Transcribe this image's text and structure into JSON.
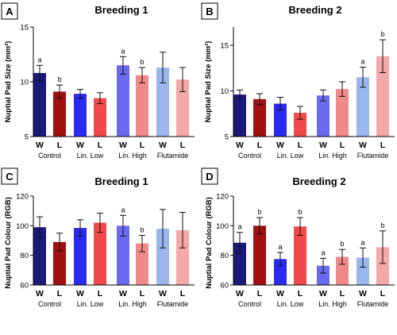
{
  "figure": {
    "panels": [
      {
        "letter": "A",
        "title": "Breeding 1"
      },
      {
        "letter": "B",
        "title": "Breeding 2"
      },
      {
        "letter": "C",
        "title": "Breeding 1"
      },
      {
        "letter": "D",
        "title": "Breeding 2"
      }
    ]
  },
  "colors": {
    "control_W": "#1a1a7a",
    "control_L": "#a01010",
    "linlow_W": "#2a2af0",
    "linlow_L": "#f04a4a",
    "linhigh_W": "#6a6af0",
    "linhigh_L": "#f08a8a",
    "flutamide_W": "#9ab6ee",
    "flutamide_L": "#f4a8a8"
  },
  "chart_data": [
    {
      "type": "bar",
      "title": "Breeding 1",
      "panel": "A",
      "ylabel": "Nuptial Pad Size (mm²)",
      "ylim": [
        5,
        15
      ],
      "yticks": [
        "5",
        "10",
        "15"
      ],
      "categories": [
        "Control W",
        "Control L",
        "Lin. Low W",
        "Lin. Low L",
        "Lin. High W",
        "Lin. High L",
        "Flutamide W",
        "Flutamide L"
      ],
      "tick_labels": [
        "W",
        "L",
        "W",
        "L",
        "W",
        "L",
        "W",
        "L"
      ],
      "groups": [
        "Control",
        "Lin. Low",
        "Lin. High",
        "Flutamide"
      ],
      "values": [
        10.8,
        9.1,
        8.9,
        8.5,
        11.5,
        10.6,
        11.3,
        10.2
      ],
      "errors": [
        0.7,
        0.6,
        0.4,
        0.5,
        0.8,
        0.7,
        1.4,
        1.1
      ],
      "sig_labels": [
        "a",
        "b",
        "",
        "",
        "a",
        "b",
        "",
        ""
      ]
    },
    {
      "type": "bar",
      "title": "Breeding 2",
      "panel": "B",
      "ylabel": "Nuptial Pad Size (mm²)",
      "ylim": [
        5,
        17
      ],
      "yticks": [
        "5",
        "10",
        "15"
      ],
      "categories": [
        "Control W",
        "Control L",
        "Lin. Low W",
        "Lin. Low L",
        "Lin. High W",
        "Lin. High L",
        "Flutamide W",
        "Flutamide L"
      ],
      "tick_labels": [
        "W",
        "L",
        "W",
        "L",
        "W",
        "L",
        "W",
        "L"
      ],
      "groups": [
        "Control",
        "Lin. Low",
        "Lin. High",
        "Flutamide"
      ],
      "values": [
        9.6,
        9.1,
        8.6,
        7.6,
        9.5,
        10.2,
        11.5,
        13.8
      ],
      "errors": [
        0.5,
        0.6,
        0.7,
        0.7,
        0.6,
        0.8,
        1.1,
        1.8
      ],
      "sig_labels": [
        "",
        "",
        "",
        "",
        "",
        "",
        "a",
        "b"
      ]
    },
    {
      "type": "bar",
      "title": "Breeding 1",
      "panel": "C",
      "ylabel": "Nuptial Pad Colour (RGB)",
      "ylim": [
        60,
        120
      ],
      "yticks": [
        "60",
        "80",
        "100",
        "120"
      ],
      "categories": [
        "Control W",
        "Control L",
        "Lin. Low W",
        "Lin. Low L",
        "Lin. High W",
        "Lin. High L",
        "Flutamide W",
        "Flutamide L"
      ],
      "tick_labels": [
        "W",
        "L",
        "W",
        "L",
        "W",
        "L",
        "W",
        "L"
      ],
      "groups": [
        "Control",
        "Lin. Low",
        "Lin. High",
        "Flutamide"
      ],
      "values": [
        99,
        89,
        98.5,
        102,
        100,
        88,
        98,
        97
      ],
      "errors": [
        7,
        6,
        5.5,
        6.5,
        7,
        5.5,
        13,
        12
      ],
      "sig_labels": [
        "",
        "",
        "",
        "",
        "a",
        "b",
        "",
        ""
      ]
    },
    {
      "type": "bar",
      "title": "Breeding 2",
      "panel": "D",
      "ylabel": "Nuptial Pad Colour (RGB)",
      "ylim": [
        60,
        120
      ],
      "yticks": [
        "60",
        "80",
        "100",
        "120"
      ],
      "categories": [
        "Control W",
        "Control L",
        "Lin. Low W",
        "Lin. Low L",
        "Lin. High W",
        "Lin. High L",
        "Flutamide W",
        "Flutamide L"
      ],
      "tick_labels": [
        "W",
        "L",
        "W",
        "L",
        "W",
        "L",
        "W",
        "L"
      ],
      "groups": [
        "Control",
        "Lin. Low",
        "Lin. High",
        "Flutamide"
      ],
      "values": [
        88.5,
        100,
        77.5,
        99.5,
        73,
        79,
        78.5,
        85.5
      ],
      "errors": [
        7,
        5.5,
        4.5,
        6,
        5,
        5,
        6.5,
        11
      ],
      "sig_labels": [
        "a",
        "b",
        "a",
        "b",
        "a",
        "b",
        "a",
        "b"
      ]
    }
  ]
}
